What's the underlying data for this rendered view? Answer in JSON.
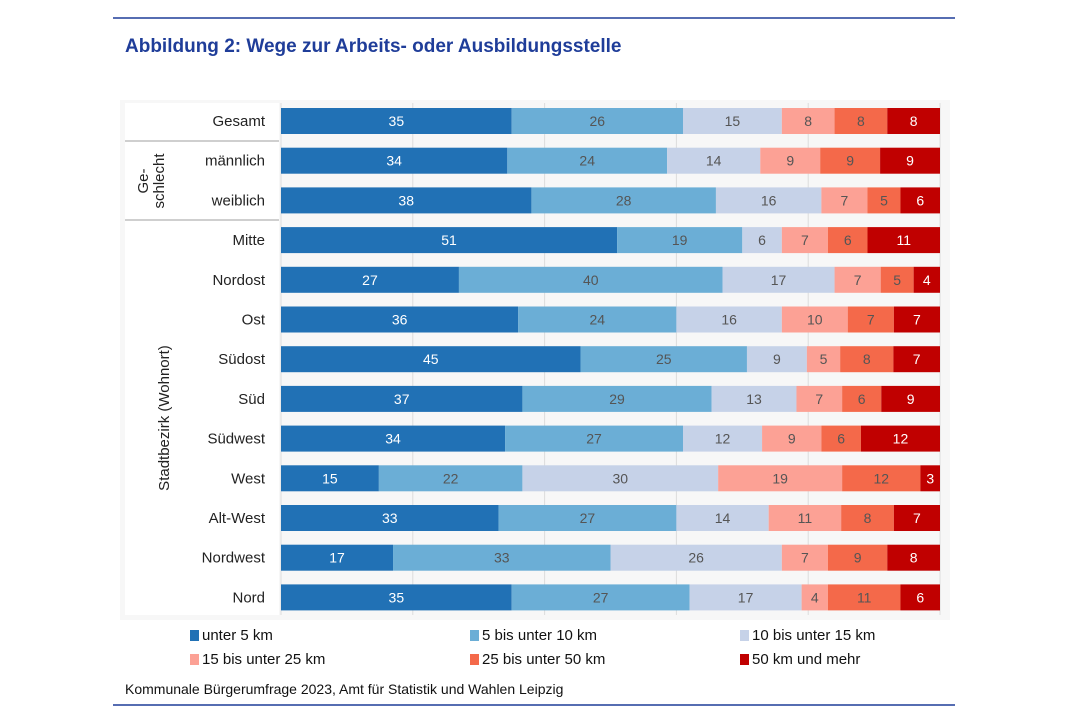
{
  "chart_data": {
    "type": "bar",
    "orientation": "horizontal",
    "stacked": true,
    "normalized_percent": true,
    "title": "Abbildung 2: Wege zur Arbeits- oder Ausbildungsstelle",
    "source": "Kommunale Bürgerumfrage 2023, Amt für Statistik und Wahlen Leipzig",
    "groups": [
      {
        "label": "",
        "categories": [
          "Gesamt"
        ]
      },
      {
        "label": "Ge-\nschlecht",
        "categories": [
          "männlich",
          "weiblich"
        ]
      },
      {
        "label": "Stadtbezirk (Wohnort)",
        "categories": [
          "Mitte",
          "Nordost",
          "Ost",
          "Südost",
          "Süd",
          "Südwest",
          "West",
          "Alt-West",
          "Nordwest",
          "Nord"
        ]
      }
    ],
    "categories": [
      "Gesamt",
      "männlich",
      "weiblich",
      "Mitte",
      "Nordost",
      "Ost",
      "Südost",
      "Süd",
      "Südwest",
      "West",
      "Alt-West",
      "Nordwest",
      "Nord"
    ],
    "series": [
      {
        "name": "unter 5 km",
        "color": "#2171b5",
        "values": [
          35,
          34,
          38,
          51,
          27,
          36,
          45,
          37,
          34,
          15,
          33,
          17,
          35
        ]
      },
      {
        "name": "5 bis unter 10 km",
        "color": "#6baed6",
        "values": [
          26,
          24,
          28,
          19,
          40,
          24,
          25,
          29,
          27,
          22,
          27,
          33,
          27
        ]
      },
      {
        "name": "10 bis unter 15 km",
        "color": "#c6d2e8",
        "values": [
          15,
          14,
          16,
          6,
          17,
          16,
          9,
          13,
          12,
          30,
          14,
          26,
          17
        ]
      },
      {
        "name": "15 bis unter 25 km",
        "color": "#fca195",
        "values": [
          8,
          9,
          7,
          7,
          7,
          10,
          5,
          7,
          9,
          19,
          11,
          7,
          4
        ]
      },
      {
        "name": "25 bis unter 50 km",
        "color": "#f4694a",
        "values": [
          8,
          9,
          5,
          6,
          5,
          7,
          8,
          6,
          6,
          12,
          8,
          9,
          11
        ]
      },
      {
        "name": "50 km und mehr",
        "color": "#c00000",
        "values": [
          8,
          9,
          6,
          11,
          4,
          7,
          7,
          9,
          12,
          3,
          7,
          8,
          6
        ]
      }
    ],
    "xlim": [
      0,
      100
    ],
    "grid": true,
    "legend_position": "bottom",
    "title_color": "#1f3d99"
  }
}
